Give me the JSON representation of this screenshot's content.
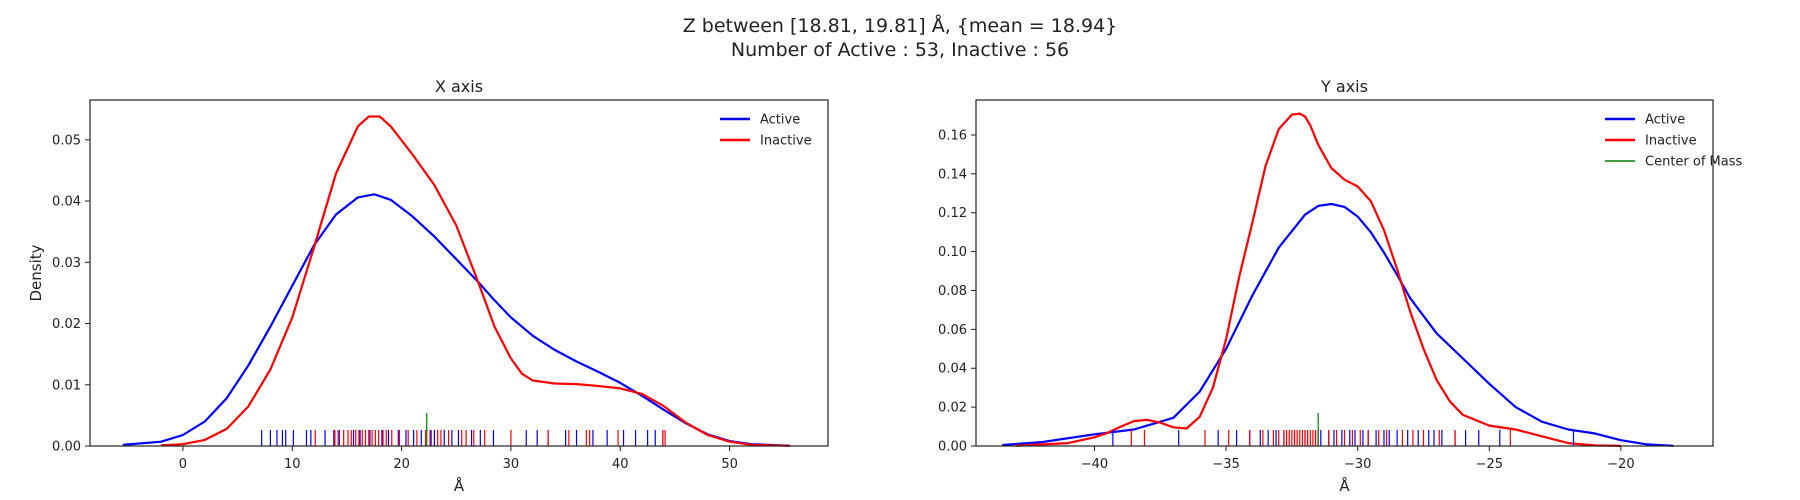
{
  "figure": {
    "title_line1": "Z between [18.81, 19.81] Å, {mean = 18.94}",
    "title_line2": "Number of Active : 53, Inactive : 56"
  },
  "colors": {
    "active": "#0000ff",
    "inactive": "#ff0000",
    "center": "#008000"
  },
  "chart_data": [
    {
      "type": "line",
      "title": "X axis",
      "xlabel": "Å",
      "ylabel": "Density",
      "xlim": [
        -8.5,
        59
      ],
      "ylim": [
        0,
        0.0565
      ],
      "xticks": [
        0,
        10,
        20,
        30,
        40,
        50
      ],
      "yticks": [
        0.0,
        0.01,
        0.02,
        0.03,
        0.04,
        0.05
      ],
      "xtick_labels": [
        "0",
        "10",
        "20",
        "30",
        "40",
        "50"
      ],
      "ytick_labels": [
        "0.00",
        "0.01",
        "0.02",
        "0.03",
        "0.04",
        "0.05"
      ],
      "legend_placement": "top-right",
      "legend": [
        "Active",
        "Inactive"
      ],
      "series": [
        {
          "name": "Active",
          "x": [
            -5.5,
            -2,
            0,
            2,
            4,
            6,
            8,
            10,
            12,
            14,
            16,
            17.5,
            19,
            21,
            23,
            25,
            27,
            28.5,
            30,
            32,
            34,
            36,
            38,
            40,
            42,
            44,
            46,
            48,
            50,
            52,
            55.5
          ],
          "y": [
            0.0002,
            0.0007,
            0.0018,
            0.004,
            0.0078,
            0.0132,
            0.0195,
            0.0262,
            0.0328,
            0.0378,
            0.0406,
            0.0411,
            0.0402,
            0.0375,
            0.0342,
            0.0305,
            0.0268,
            0.0238,
            0.021,
            0.018,
            0.0157,
            0.0138,
            0.0121,
            0.0103,
            0.0082,
            0.0059,
            0.0037,
            0.0019,
            0.0008,
            0.0003,
            5e-05
          ]
        },
        {
          "name": "Inactive",
          "x": [
            -2,
            0,
            2,
            4,
            6,
            8,
            10,
            12,
            14,
            16,
            17,
            18,
            19,
            21,
            23,
            25,
            27,
            28.5,
            30,
            31,
            32,
            34,
            36,
            38,
            40,
            42,
            44,
            46,
            48,
            50,
            52,
            55.5
          ],
          "y": [
            0.0001,
            0.0003,
            0.001,
            0.0028,
            0.0065,
            0.0125,
            0.021,
            0.0325,
            0.0445,
            0.0522,
            0.0538,
            0.0538,
            0.0522,
            0.0476,
            0.0426,
            0.036,
            0.0268,
            0.0195,
            0.0143,
            0.0118,
            0.0107,
            0.0102,
            0.0101,
            0.0098,
            0.0094,
            0.0085,
            0.0065,
            0.0038,
            0.0018,
            0.0007,
            0.0002,
            3e-05
          ]
        }
      ],
      "rug": {
        "Active": [
          7.2,
          8.0,
          8.6,
          9.1,
          9.4,
          10.1,
          11.3,
          11.7,
          13.0,
          13.8,
          14.3,
          15.6,
          16.2,
          17.1,
          18.2,
          18.8,
          19.7,
          20.4,
          21.1,
          21.8,
          22.7,
          23.0,
          23.9,
          24.6,
          25.2,
          26.4,
          27.2,
          28.4,
          31.4,
          32.4,
          33.4,
          35.0,
          36.0,
          37.5,
          38.8,
          40.3,
          41.4,
          42.5,
          43.2,
          43.9
        ],
        "Inactive": [
          12.1,
          13.9,
          14.2,
          14.7,
          15.1,
          15.4,
          15.8,
          16.1,
          16.4,
          16.7,
          17.0,
          17.3,
          17.6,
          17.9,
          18.3,
          18.6,
          19.1,
          19.8,
          20.6,
          21.4,
          22.2,
          22.6,
          23.3,
          23.6,
          24.3,
          25.5,
          25.9,
          26.6,
          27.6,
          30.0,
          33.4,
          35.3,
          36.9,
          37.2,
          39.8,
          43.9,
          44.1
        ],
        "Center of Mass": [
          22.3
        ]
      }
    },
    {
      "type": "line",
      "title": "Y axis",
      "xlabel": "Å",
      "ylabel": "",
      "xlim": [
        -44.5,
        -16.5
      ],
      "ylim": [
        0,
        0.178
      ],
      "xticks": [
        -40,
        -35,
        -30,
        -25,
        -20
      ],
      "yticks": [
        0.0,
        0.02,
        0.04,
        0.06,
        0.08,
        0.1,
        0.12,
        0.14,
        0.16
      ],
      "xtick_labels": [
        "−40",
        "−35",
        "−30",
        "−25",
        "−20"
      ],
      "ytick_labels": [
        "0.00",
        "0.02",
        "0.04",
        "0.06",
        "0.08",
        "0.10",
        "0.12",
        "0.14",
        "0.16"
      ],
      "legend_placement": "top-right",
      "legend": [
        "Active",
        "Inactive",
        "Center of Mass"
      ],
      "series": [
        {
          "name": "Active",
          "x": [
            -43.5,
            -42,
            -40,
            -38.5,
            -37,
            -36,
            -35,
            -34,
            -33,
            -32,
            -31.5,
            -31,
            -30.5,
            -30,
            -29.5,
            -29,
            -28.5,
            -28,
            -27,
            -26,
            -25,
            -24,
            -23,
            -22,
            -21,
            -20,
            -19,
            -18
          ],
          "y": [
            0.0005,
            0.002,
            0.006,
            0.0085,
            0.0145,
            0.028,
            0.05,
            0.0775,
            0.102,
            0.119,
            0.1235,
            0.1245,
            0.123,
            0.118,
            0.11,
            0.0995,
            0.088,
            0.076,
            0.058,
            0.045,
            0.032,
            0.02,
            0.0125,
            0.0085,
            0.0065,
            0.003,
            0.0008,
            0.0001
          ]
        },
        {
          "name": "Inactive",
          "x": [
            -43,
            -41,
            -40,
            -39.5,
            -39,
            -38.5,
            -38,
            -37.5,
            -37,
            -36.5,
            -36,
            -35.5,
            -35,
            -34.5,
            -34,
            -33.5,
            -33,
            -32.5,
            -32.2,
            -32,
            -31.8,
            -31.5,
            -31,
            -30.5,
            -30,
            -29.5,
            -29,
            -28.5,
            -28,
            -27.5,
            -27,
            -26.5,
            -26,
            -25,
            -24,
            -23,
            -22,
            -21,
            -20
          ],
          "y": [
            0.0001,
            0.0015,
            0.0045,
            0.0068,
            0.01,
            0.0128,
            0.0135,
            0.012,
            0.0096,
            0.009,
            0.015,
            0.03,
            0.055,
            0.087,
            0.115,
            0.144,
            0.163,
            0.1705,
            0.171,
            0.1695,
            0.165,
            0.155,
            0.143,
            0.137,
            0.1335,
            0.126,
            0.111,
            0.091,
            0.069,
            0.05,
            0.034,
            0.023,
            0.016,
            0.0105,
            0.0085,
            0.005,
            0.0015,
            0.0003,
            5e-05
          ]
        }
      ],
      "rug": {
        "Active": [
          -39.3,
          -36.8,
          -35.3,
          -34.6,
          -34.1,
          -33.7,
          -33.4,
          -33.1,
          -32.8,
          -32.4,
          -32.0,
          -31.6,
          -31.4,
          -31.1,
          -30.9,
          -30.6,
          -30.3,
          -30.1,
          -29.8,
          -29.6,
          -29.3,
          -29.0,
          -28.8,
          -28.5,
          -28.1,
          -27.7,
          -27.3,
          -27.1,
          -26.8,
          -26.3,
          -25.9,
          -25.4,
          -24.6,
          -21.8
        ],
        "Inactive": [
          -38.6,
          -38.1,
          -35.8,
          -34.9,
          -34.1,
          -33.6,
          -33.2,
          -33.0,
          -32.8,
          -32.7,
          -32.6,
          -32.5,
          -32.4,
          -32.3,
          -32.2,
          -32.1,
          -32.0,
          -31.9,
          -31.8,
          -31.7,
          -31.6,
          -31.5,
          -31.1,
          -30.8,
          -30.5,
          -30.2,
          -29.9,
          -29.6,
          -29.2,
          -28.9,
          -28.3,
          -27.9,
          -27.5,
          -26.9,
          -26.3,
          -24.2
        ],
        "Center of Mass": [
          -31.5
        ]
      }
    }
  ]
}
